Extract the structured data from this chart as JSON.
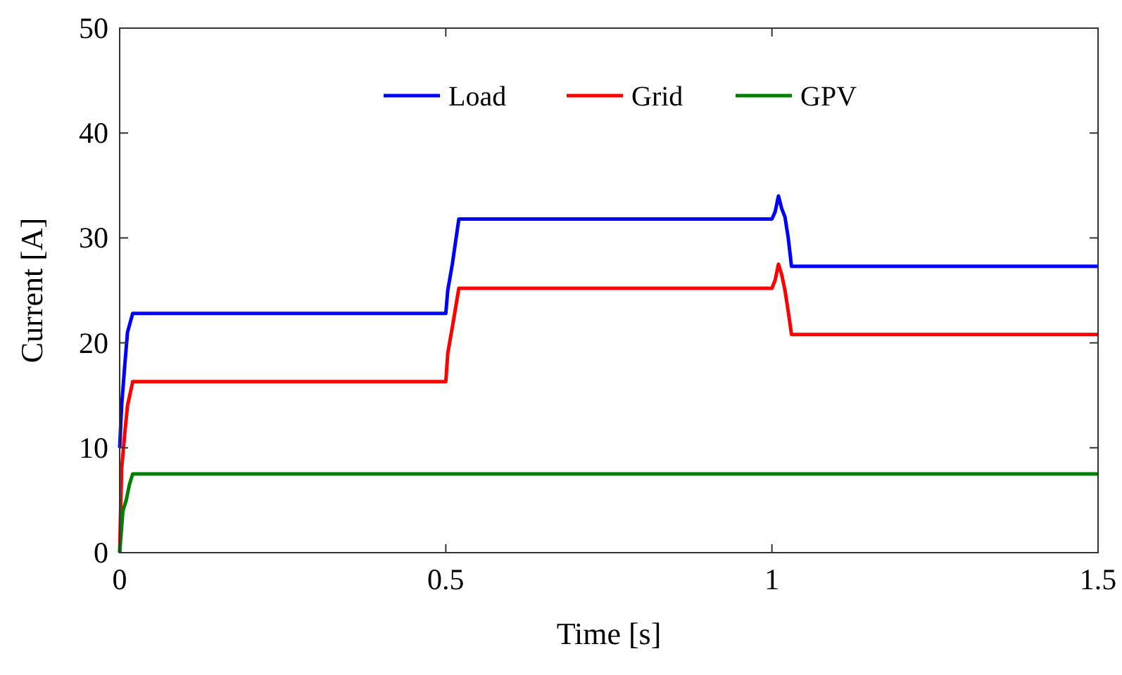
{
  "chart_data": {
    "type": "line",
    "xlabel": "Time [s]",
    "ylabel": "Current [A]",
    "xlim": [
      0,
      1.5
    ],
    "ylim": [
      0,
      50
    ],
    "xticks": [
      0,
      0.5,
      1,
      1.5
    ],
    "yticks": [
      0,
      10,
      20,
      30,
      40,
      50
    ],
    "grid": false,
    "legend": "top",
    "series": [
      {
        "name": "Load",
        "color": "#0000ff",
        "x": [
          0,
          0.003,
          0.008,
          0.012,
          0.02,
          0.5,
          0.503,
          0.51,
          0.52,
          1.0,
          1.005,
          1.01,
          1.015,
          1.02,
          1.025,
          1.03,
          1.5
        ],
        "values": [
          10,
          14,
          18,
          21,
          22.8,
          22.8,
          25,
          27.5,
          31.8,
          31.8,
          32.5,
          34,
          32.8,
          32,
          30,
          27.3,
          27.3
        ]
      },
      {
        "name": "Grid",
        "color": "#ff0000",
        "x": [
          0,
          0.003,
          0.008,
          0.012,
          0.02,
          0.5,
          0.503,
          0.51,
          0.52,
          1.0,
          1.005,
          1.01,
          1.015,
          1.02,
          1.025,
          1.03,
          1.5
        ],
        "values": [
          0,
          8,
          11.5,
          14,
          16.3,
          16.3,
          19,
          21.5,
          25.2,
          25.2,
          26,
          27.5,
          26.5,
          25,
          23,
          20.8,
          20.8
        ]
      },
      {
        "name": "GPV",
        "color": "#008000",
        "x": [
          0,
          0.005,
          0.01,
          0.015,
          0.02,
          1.5
        ],
        "values": [
          0,
          4,
          5,
          6.5,
          7.5,
          7.5
        ]
      }
    ]
  }
}
